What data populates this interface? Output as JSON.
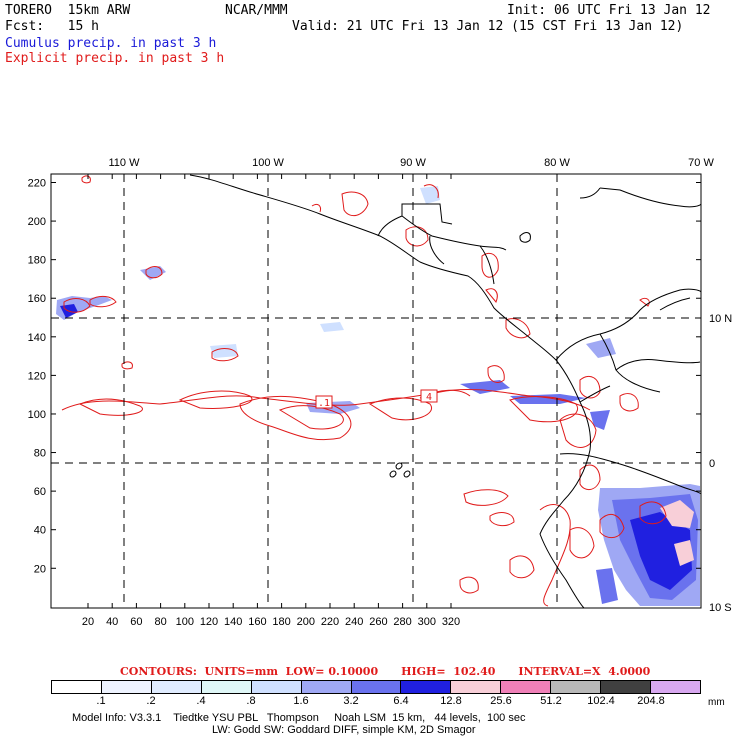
{
  "header": {
    "model": "TORERO  15km ARW",
    "center": "NCAR/MMM",
    "init": "Init: 06 UTC Fri 13 Jan 12",
    "fcst": "Fcst:   15 h",
    "valid": "Valid: 21 UTC Fri 13 Jan 12 (15 CST Fri 13 Jan 12)",
    "line_cumulus": "Cumulus precip. in past 3 h",
    "line_explicit": "Explicit precip. in past 3 h"
  },
  "map": {
    "top_lon_labels": [
      "110 W",
      "100 W",
      "90 W",
      "80 W",
      "70 W"
    ],
    "right_lat_labels": [
      "10 N",
      "0",
      "10 S"
    ],
    "y_grid_labels": [
      "220",
      "200",
      "180",
      "160",
      "140",
      "120",
      "100",
      "80",
      "60",
      "40",
      "20"
    ],
    "x_grid_labels": [
      "20",
      "40",
      "60",
      "80",
      "100",
      "120",
      "140",
      "160",
      "180",
      "200",
      "220",
      "240",
      "260",
      "280",
      "300",
      "320"
    ],
    "contour_labels": [
      ".1",
      "4"
    ],
    "colors": {
      "contour": "#e01b1b",
      "coast": "#000000",
      "cumulus_light": "#b8c8f8",
      "cumulus_mid": "#6f7cf0",
      "cumulus_dark": "#2222dd",
      "pink": "#f0a0c8"
    }
  },
  "contours": {
    "text": "CONTOURS:  UNITS=mm  LOW= 0.10000      HIGH=  102.40      INTERVAL=X  4.0000"
  },
  "legend": {
    "labels": [
      ".1",
      ".2",
      ".4",
      ".8",
      "1.6",
      "3.2",
      "6.4",
      "12.8",
      "25.6",
      "51.2",
      "102.4",
      "204.8"
    ],
    "unit": "mm",
    "colors": [
      "#ffffff",
      "#eef3ff",
      "#e0ecff",
      "#dff7f7",
      "#cfe0ff",
      "#9fa8f4",
      "#6a72ee",
      "#2020e0",
      "#f8cfd8",
      "#f080b8",
      "#b8b8b8",
      "#404040",
      "#d8a8f0"
    ]
  },
  "footer": {
    "line1": "Model Info: V3.3.1    Tiedtke YSU PBL   Thompson     Noah LSM  15 km,   44 levels,  100 sec",
    "line2": "LW: Godd SW: Goddard DIFF, simple KM, 2D Smagor"
  }
}
